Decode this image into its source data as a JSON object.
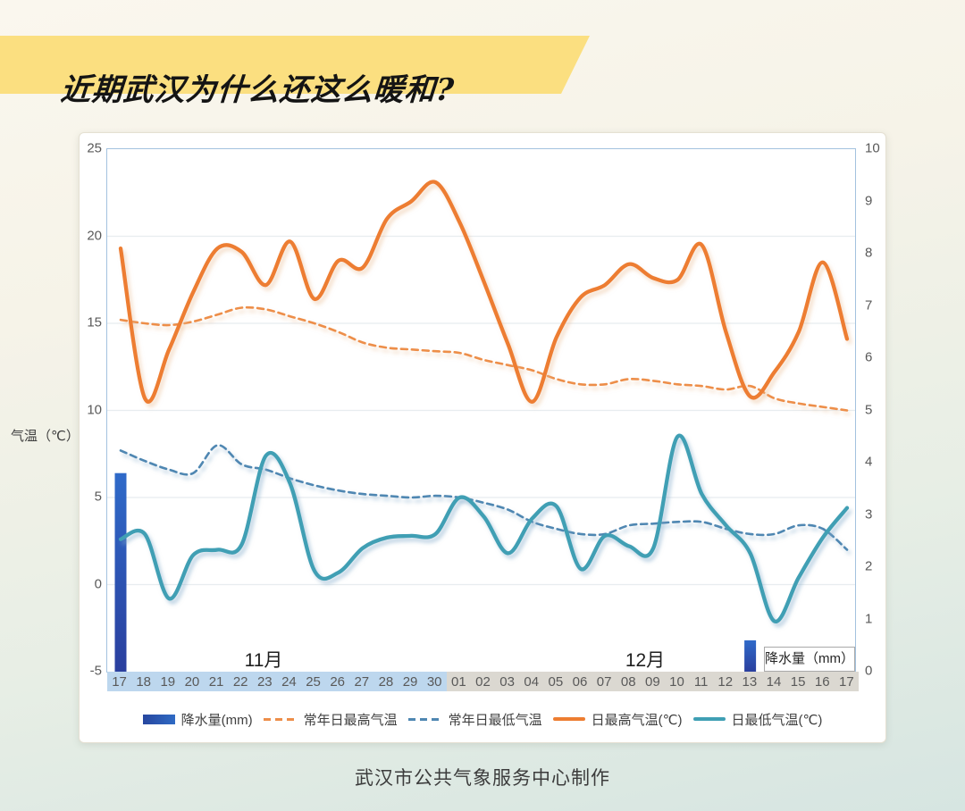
{
  "title": "近期武汉为什么还这么暖和?",
  "footer": "武汉市公共气象服务中心制作",
  "banner_color": "#fbdf80",
  "chart_data": {
    "type": "line+bar",
    "left_axis": {
      "label": "气温（℃）",
      "ticks": [
        25,
        20,
        15,
        10,
        5,
        0,
        -5
      ],
      "min": -5,
      "max": 25,
      "grid": true
    },
    "right_axis": {
      "label": "降水量（mm）",
      "ticks": [
        10,
        9,
        8,
        7,
        6,
        5,
        4,
        3,
        2,
        1,
        0
      ],
      "min": 0,
      "max": 10
    },
    "month_labels": [
      "11月",
      "12月"
    ],
    "x_dates_nov": [
      "17",
      "18",
      "19",
      "20",
      "21",
      "22",
      "23",
      "24",
      "25",
      "26",
      "27",
      "28",
      "29",
      "30"
    ],
    "x_dates_dec": [
      "01",
      "02",
      "03",
      "04",
      "05",
      "06",
      "07",
      "08",
      "09",
      "10",
      "11",
      "12",
      "13",
      "14",
      "15",
      "16",
      "17"
    ],
    "strip_colors": {
      "nov": "#bdd7ee",
      "dec": "#dbd8d1"
    },
    "series": [
      {
        "name": "降水量(mm)",
        "type": "bar",
        "axis": "right",
        "color_top": "#2f6ac9",
        "color_bottom": "#2a3f9e",
        "values": [
          3.8,
          0,
          0,
          0,
          0,
          0,
          0,
          0,
          0,
          0,
          0,
          0,
          0,
          0,
          0,
          0,
          0,
          0,
          0,
          0,
          0,
          0,
          0,
          0,
          0,
          0,
          0.6,
          0,
          0,
          0,
          0
        ]
      },
      {
        "name": "常年日最高气温",
        "type": "line",
        "style": "dashed",
        "color": "#ed8e49",
        "values": [
          15.2,
          15.0,
          14.9,
          15.1,
          15.5,
          15.9,
          15.8,
          15.4,
          15.0,
          14.5,
          13.9,
          13.6,
          13.5,
          13.4,
          13.3,
          12.9,
          12.6,
          12.3,
          11.8,
          11.5,
          11.5,
          11.8,
          11.7,
          11.5,
          11.4,
          11.2,
          11.4,
          10.7,
          10.4,
          10.2,
          10.0
        ]
      },
      {
        "name": "常年日最低气温",
        "type": "line",
        "style": "dashed",
        "color": "#4f87b2",
        "values": [
          7.7,
          7.1,
          6.6,
          6.4,
          8.0,
          6.9,
          6.6,
          6.1,
          5.7,
          5.4,
          5.2,
          5.1,
          5.0,
          5.1,
          5.0,
          4.7,
          4.3,
          3.6,
          3.2,
          2.9,
          2.9,
          3.4,
          3.5,
          3.6,
          3.6,
          3.2,
          2.9,
          2.9,
          3.4,
          3.2,
          2.0
        ]
      },
      {
        "name": "日最高气温(℃)",
        "type": "line",
        "style": "solid",
        "color": "#ed7d31",
        "values": [
          19.3,
          10.7,
          13.5,
          16.8,
          19.3,
          19.1,
          17.2,
          19.7,
          16.4,
          18.6,
          18.2,
          21.0,
          22.0,
          23.1,
          20.8,
          17.4,
          13.8,
          10.5,
          14.2,
          16.5,
          17.2,
          18.4,
          17.6,
          17.5,
          19.5,
          14.5,
          10.8,
          12.2,
          14.5,
          18.5,
          14.1
        ]
      },
      {
        "name": "日最低气温(℃)",
        "type": "line",
        "style": "solid",
        "color": "#3f9fb4",
        "values": [
          2.6,
          2.9,
          -0.8,
          1.7,
          2.0,
          2.3,
          7.4,
          5.8,
          0.8,
          0.7,
          2.1,
          2.7,
          2.8,
          2.9,
          5.0,
          3.9,
          1.8,
          3.8,
          4.5,
          0.9,
          2.8,
          2.2,
          2.1,
          8.5,
          5.2,
          3.4,
          1.8,
          -2.1,
          0.4,
          2.7,
          4.4
        ]
      }
    ],
    "legend": [
      {
        "label": "降水量(mm)",
        "swatch": "bar"
      },
      {
        "label": "常年日最高气温",
        "swatch": "dash-orange"
      },
      {
        "label": "常年日最低气温",
        "swatch": "dash-blue"
      },
      {
        "label": "日最高气温(℃)",
        "swatch": "line-orange"
      },
      {
        "label": "日最低气温(℃)",
        "swatch": "line-teal"
      }
    ]
  }
}
